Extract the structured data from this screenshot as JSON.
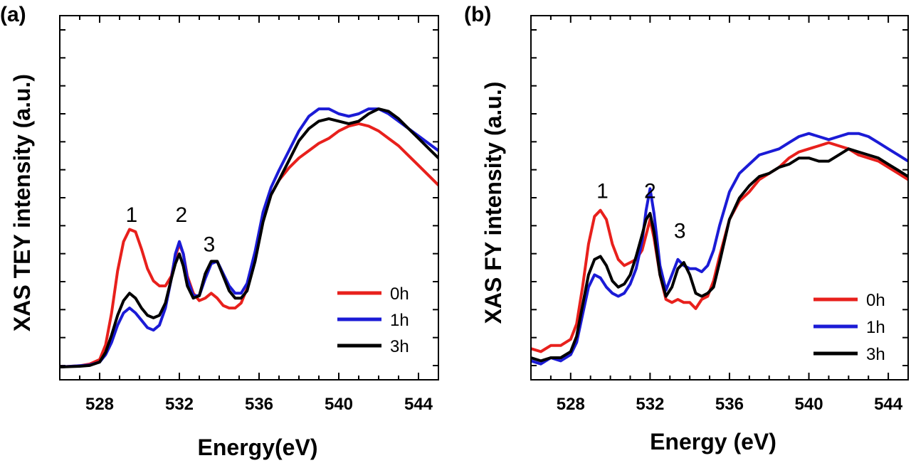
{
  "chart_data": [
    {
      "type": "line",
      "panel_label": "(a)",
      "xlabel": "Energy(eV)",
      "ylabel": "XAS TEY intensity (a.u.)",
      "xlim": [
        526,
        545
      ],
      "ylim": [
        0,
        1.25
      ],
      "xticks": [
        528,
        532,
        536,
        540,
        544
      ],
      "xtick_labels": [
        "528",
        "532",
        "536",
        "540",
        "544"
      ],
      "y_minor_ticks": 12,
      "grid": false,
      "legend_position": "bottom-right",
      "peak_labels": [
        {
          "text": "1",
          "x": 529.6,
          "y": 0.59
        },
        {
          "text": "2",
          "x": 532.1,
          "y": 0.59
        },
        {
          "text": "3",
          "x": 533.5,
          "y": 0.47
        }
      ],
      "series": [
        {
          "name": "0h",
          "color": "#e8201c",
          "x": [
            526,
            527,
            527.5,
            528,
            528.3,
            528.6,
            528.9,
            529.2,
            529.5,
            529.8,
            530.1,
            530.4,
            530.7,
            531,
            531.3,
            531.6,
            531.8,
            532,
            532.2,
            532.4,
            532.7,
            533,
            533.3,
            533.6,
            533.9,
            534.2,
            534.5,
            534.8,
            535.1,
            535.4,
            535.8,
            536.2,
            536.6,
            537,
            537.5,
            538,
            538.5,
            539,
            539.5,
            540,
            540.5,
            541,
            541.5,
            542,
            542.5,
            543,
            543.5,
            544,
            544.5,
            545
          ],
          "y": [
            0.0,
            0.005,
            0.012,
            0.03,
            0.09,
            0.22,
            0.39,
            0.51,
            0.56,
            0.55,
            0.48,
            0.4,
            0.35,
            0.33,
            0.33,
            0.37,
            0.45,
            0.5,
            0.46,
            0.37,
            0.3,
            0.27,
            0.28,
            0.3,
            0.28,
            0.25,
            0.24,
            0.24,
            0.26,
            0.32,
            0.45,
            0.6,
            0.7,
            0.76,
            0.81,
            0.85,
            0.88,
            0.91,
            0.93,
            0.96,
            0.98,
            0.99,
            0.98,
            0.96,
            0.93,
            0.9,
            0.86,
            0.82,
            0.78,
            0.74
          ]
        },
        {
          "name": "1h",
          "color": "#1b1bd6",
          "x": [
            526,
            527,
            527.5,
            528,
            528.3,
            528.6,
            528.9,
            529.2,
            529.5,
            529.8,
            530.1,
            530.4,
            530.7,
            531,
            531.3,
            531.6,
            531.8,
            532,
            532.2,
            532.4,
            532.7,
            533,
            533.3,
            533.6,
            533.9,
            534.2,
            534.5,
            534.8,
            535.1,
            535.4,
            535.8,
            536.2,
            536.6,
            537,
            537.5,
            538,
            538.5,
            539,
            539.5,
            540,
            540.5,
            541,
            541.5,
            542,
            542.5,
            543,
            543.5,
            544,
            544.5,
            545
          ],
          "y": [
            0.0,
            0.005,
            0.008,
            0.02,
            0.05,
            0.1,
            0.17,
            0.22,
            0.24,
            0.22,
            0.19,
            0.16,
            0.15,
            0.17,
            0.24,
            0.36,
            0.46,
            0.51,
            0.46,
            0.36,
            0.29,
            0.29,
            0.36,
            0.42,
            0.43,
            0.38,
            0.33,
            0.3,
            0.3,
            0.34,
            0.47,
            0.63,
            0.73,
            0.8,
            0.88,
            0.96,
            1.02,
            1.05,
            1.05,
            1.03,
            1.02,
            1.03,
            1.05,
            1.05,
            1.03,
            1.0,
            0.97,
            0.94,
            0.91,
            0.88
          ]
        },
        {
          "name": "3h",
          "color": "#000000",
          "x": [
            526,
            527,
            527.5,
            528,
            528.3,
            528.6,
            528.9,
            529.2,
            529.5,
            529.8,
            530.1,
            530.4,
            530.7,
            531,
            531.3,
            531.6,
            531.8,
            532,
            532.2,
            532.4,
            532.7,
            533,
            533.3,
            533.6,
            533.9,
            534.2,
            534.5,
            534.8,
            535.1,
            535.4,
            535.8,
            536.2,
            536.6,
            537,
            537.5,
            538,
            538.5,
            539,
            539.5,
            540,
            540.5,
            541,
            541.5,
            542,
            542.5,
            543,
            543.5,
            544,
            544.5,
            545
          ],
          "y": [
            0.0,
            0.003,
            0.006,
            0.02,
            0.06,
            0.13,
            0.21,
            0.27,
            0.3,
            0.28,
            0.24,
            0.21,
            0.2,
            0.21,
            0.26,
            0.36,
            0.42,
            0.46,
            0.41,
            0.33,
            0.28,
            0.29,
            0.38,
            0.43,
            0.43,
            0.37,
            0.31,
            0.28,
            0.28,
            0.31,
            0.43,
            0.59,
            0.7,
            0.76,
            0.84,
            0.92,
            0.97,
            1.0,
            1.01,
            1.0,
            0.99,
            1.0,
            1.03,
            1.05,
            1.04,
            1.01,
            0.97,
            0.93,
            0.89,
            0.85
          ]
        }
      ]
    },
    {
      "type": "line",
      "panel_label": "(b)",
      "xlabel": "Energy (eV)",
      "ylabel": "XAS FY intensity (a.u.)",
      "xlim": [
        526,
        545
      ],
      "ylim": [
        0,
        1.0
      ],
      "xticks": [
        528,
        532,
        536,
        540,
        544
      ],
      "xtick_labels": [
        "528",
        "532",
        "536",
        "540",
        "544"
      ],
      "y_minor_ticks": 12,
      "grid": false,
      "legend_position": "bottom-right",
      "peak_labels": [
        {
          "text": "1",
          "x": 529.6,
          "y": 0.55
        },
        {
          "text": "2",
          "x": 532.0,
          "y": 0.55
        },
        {
          "text": "3",
          "x": 533.5,
          "y": 0.42
        }
      ],
      "series": [
        {
          "name": "0h",
          "color": "#e8201c",
          "x": [
            526,
            526.5,
            527,
            527.5,
            528,
            528.3,
            528.6,
            528.9,
            529.2,
            529.5,
            529.8,
            530.1,
            530.4,
            530.7,
            531,
            531.3,
            531.6,
            531.8,
            532,
            532.2,
            532.5,
            532.8,
            533.1,
            533.4,
            533.7,
            534,
            534.3,
            534.6,
            534.9,
            535.2,
            535.5,
            536,
            536.5,
            537,
            537.5,
            538,
            538.5,
            539,
            539.5,
            540,
            540.5,
            541,
            541.5,
            542,
            542.5,
            543,
            543.5,
            544,
            544.5,
            545
          ],
          "y": [
            0.06,
            0.05,
            0.07,
            0.07,
            0.09,
            0.14,
            0.26,
            0.4,
            0.49,
            0.51,
            0.48,
            0.4,
            0.35,
            0.33,
            0.34,
            0.35,
            0.38,
            0.43,
            0.48,
            0.42,
            0.3,
            0.22,
            0.21,
            0.22,
            0.21,
            0.21,
            0.19,
            0.22,
            0.23,
            0.28,
            0.36,
            0.48,
            0.54,
            0.57,
            0.61,
            0.63,
            0.65,
            0.68,
            0.7,
            0.71,
            0.72,
            0.73,
            0.72,
            0.71,
            0.69,
            0.68,
            0.67,
            0.65,
            0.63,
            0.61
          ]
        },
        {
          "name": "1h",
          "color": "#1b1bd6",
          "x": [
            526,
            526.5,
            527,
            527.5,
            528,
            528.3,
            528.6,
            528.9,
            529.2,
            529.5,
            529.8,
            530.1,
            530.4,
            530.7,
            531,
            531.3,
            531.6,
            531.8,
            532,
            532.2,
            532.5,
            532.8,
            533.1,
            533.4,
            533.7,
            534,
            534.3,
            534.6,
            534.9,
            535.2,
            535.5,
            536,
            536.5,
            537,
            537.5,
            538,
            538.5,
            539,
            539.5,
            540,
            540.5,
            541,
            541.5,
            542,
            542.5,
            543,
            543.5,
            544,
            544.5,
            545
          ],
          "y": [
            0.02,
            0.01,
            0.03,
            0.02,
            0.04,
            0.08,
            0.17,
            0.26,
            0.3,
            0.29,
            0.26,
            0.24,
            0.23,
            0.24,
            0.27,
            0.32,
            0.41,
            0.51,
            0.58,
            0.5,
            0.33,
            0.25,
            0.3,
            0.35,
            0.33,
            0.32,
            0.32,
            0.31,
            0.33,
            0.38,
            0.46,
            0.57,
            0.63,
            0.66,
            0.69,
            0.7,
            0.71,
            0.73,
            0.75,
            0.76,
            0.75,
            0.74,
            0.75,
            0.76,
            0.76,
            0.75,
            0.73,
            0.71,
            0.69,
            0.67
          ]
        },
        {
          "name": "3h",
          "color": "#000000",
          "x": [
            526,
            526.5,
            527,
            527.5,
            528,
            528.3,
            528.6,
            528.9,
            529.2,
            529.5,
            529.8,
            530.1,
            530.4,
            530.7,
            531,
            531.3,
            531.6,
            531.8,
            532,
            532.2,
            532.5,
            532.8,
            533.1,
            533.4,
            533.7,
            534,
            534.3,
            534.6,
            534.9,
            535.2,
            535.5,
            536,
            536.5,
            537,
            537.5,
            538,
            538.5,
            539,
            539.5,
            540,
            540.5,
            541,
            541.5,
            542,
            542.5,
            543,
            543.5,
            544,
            544.5,
            545
          ],
          "y": [
            0.03,
            0.02,
            0.03,
            0.03,
            0.05,
            0.1,
            0.2,
            0.3,
            0.35,
            0.36,
            0.33,
            0.28,
            0.26,
            0.27,
            0.3,
            0.36,
            0.43,
            0.48,
            0.5,
            0.44,
            0.3,
            0.23,
            0.26,
            0.32,
            0.34,
            0.3,
            0.24,
            0.23,
            0.24,
            0.26,
            0.34,
            0.48,
            0.55,
            0.59,
            0.62,
            0.63,
            0.65,
            0.66,
            0.68,
            0.68,
            0.67,
            0.67,
            0.69,
            0.71,
            0.7,
            0.69,
            0.68,
            0.66,
            0.64,
            0.62
          ]
        }
      ]
    }
  ]
}
